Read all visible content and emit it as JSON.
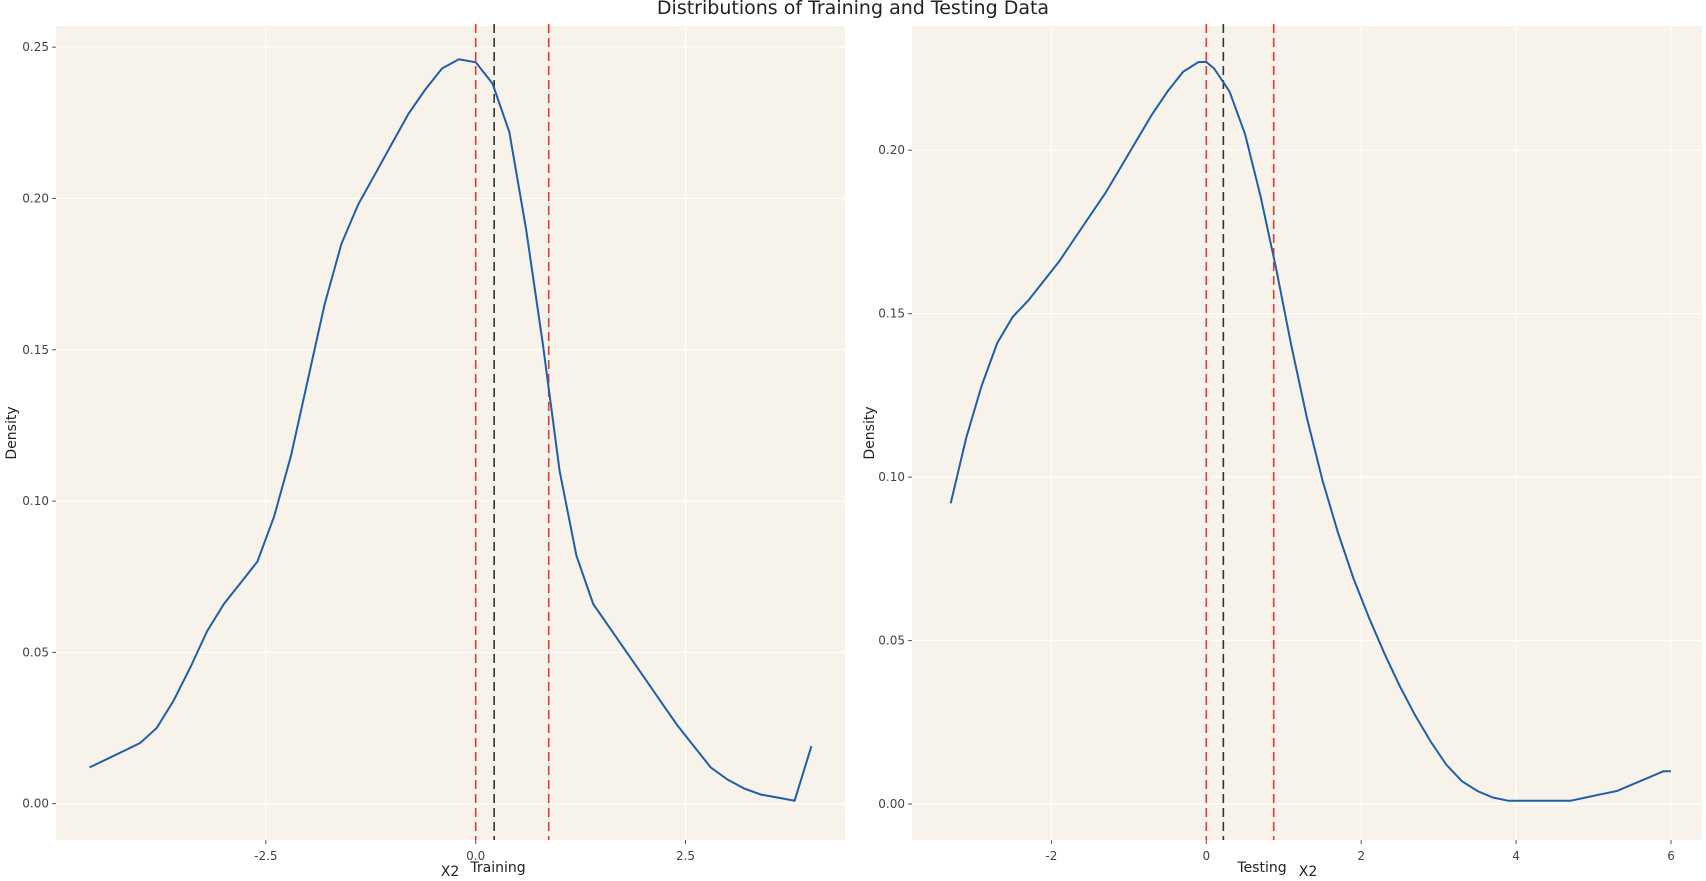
{
  "figure": {
    "title": "Distributions of Training and Testing Data"
  },
  "chart_data": [
    {
      "type": "line",
      "panel_label": "Training",
      "xlabel": "X2",
      "ylabel": "Density",
      "xlim": [
        -5.0,
        4.4
      ],
      "ylim": [
        -0.012,
        0.257
      ],
      "xticks": [
        -2.5,
        0.0,
        2.5
      ],
      "xtick_labels": [
        "-2.5",
        "0.0",
        "2.5"
      ],
      "yticks": [
        0.0,
        0.05,
        0.1,
        0.15,
        0.2,
        0.25
      ],
      "ytick_labels": [
        "0.00",
        "0.05",
        "0.10",
        "0.15",
        "0.20",
        "0.25"
      ],
      "grid": true,
      "background": "#f7f3eb",
      "line_color": "#1f5fa8",
      "x": [
        -4.6,
        -4.3,
        -4.0,
        -3.8,
        -3.6,
        -3.4,
        -3.2,
        -3.0,
        -2.8,
        -2.6,
        -2.4,
        -2.2,
        -2.0,
        -1.8,
        -1.6,
        -1.4,
        -1.2,
        -1.0,
        -0.8,
        -0.6,
        -0.4,
        -0.2,
        0.0,
        0.2,
        0.4,
        0.6,
        0.8,
        1.0,
        1.2,
        1.4,
        1.6,
        1.8,
        2.0,
        2.2,
        2.4,
        2.6,
        2.8,
        3.0,
        3.2,
        3.4,
        3.6,
        3.8,
        4.0
      ],
      "y": [
        0.012,
        0.016,
        0.02,
        0.025,
        0.034,
        0.045,
        0.057,
        0.066,
        0.073,
        0.08,
        0.095,
        0.115,
        0.14,
        0.165,
        0.185,
        0.198,
        0.208,
        0.218,
        0.228,
        0.236,
        0.243,
        0.246,
        0.245,
        0.238,
        0.222,
        0.19,
        0.152,
        0.11,
        0.082,
        0.066,
        0.058,
        0.05,
        0.042,
        0.034,
        0.026,
        0.019,
        0.012,
        0.008,
        0.005,
        0.003,
        0.002,
        0.001,
        0.019
      ],
      "vlines": [
        {
          "x": 0.0,
          "color": "#e8372c"
        },
        {
          "x": 0.22,
          "color": "#333333"
        },
        {
          "x": 0.87,
          "color": "#e8372c"
        }
      ]
    },
    {
      "type": "line",
      "panel_label": "Testing",
      "xlabel": "X2",
      "ylabel": "Density",
      "xlim": [
        -3.8,
        6.4
      ],
      "ylim": [
        -0.011,
        0.238
      ],
      "xticks": [
        -2,
        0,
        2,
        4,
        6
      ],
      "xtick_labels": [
        "-2",
        "0",
        "2",
        "4",
        "6"
      ],
      "yticks": [
        0.0,
        0.05,
        0.1,
        0.15,
        0.2
      ],
      "ytick_labels": [
        "0.00",
        "0.05",
        "0.10",
        "0.15",
        "0.20"
      ],
      "grid": true,
      "background": "#f7f3eb",
      "line_color": "#1f5fa8",
      "x": [
        -3.3,
        -3.1,
        -2.9,
        -2.7,
        -2.5,
        -2.3,
        -2.1,
        -1.9,
        -1.7,
        -1.5,
        -1.3,
        -1.1,
        -0.9,
        -0.7,
        -0.5,
        -0.3,
        -0.1,
        0.0,
        0.1,
        0.3,
        0.5,
        0.7,
        0.9,
        1.1,
        1.3,
        1.5,
        1.7,
        1.9,
        2.1,
        2.3,
        2.5,
        2.7,
        2.9,
        3.1,
        3.3,
        3.5,
        3.7,
        3.9,
        4.1,
        4.3,
        4.5,
        4.7,
        4.9,
        5.1,
        5.3,
        5.5,
        5.7,
        5.9,
        6.0
      ],
      "y": [
        0.092,
        0.112,
        0.128,
        0.141,
        0.149,
        0.154,
        0.16,
        0.166,
        0.173,
        0.18,
        0.187,
        0.195,
        0.203,
        0.211,
        0.218,
        0.224,
        0.227,
        0.227,
        0.225,
        0.218,
        0.205,
        0.186,
        0.164,
        0.14,
        0.118,
        0.099,
        0.083,
        0.069,
        0.057,
        0.046,
        0.036,
        0.027,
        0.019,
        0.012,
        0.007,
        0.004,
        0.002,
        0.001,
        0.001,
        0.001,
        0.001,
        0.001,
        0.002,
        0.003,
        0.004,
        0.006,
        0.008,
        0.01,
        0.01
      ],
      "vlines": [
        {
          "x": 0.0,
          "color": "#e8372c"
        },
        {
          "x": 0.22,
          "color": "#333333"
        },
        {
          "x": 0.87,
          "color": "#e8372c"
        }
      ]
    }
  ]
}
